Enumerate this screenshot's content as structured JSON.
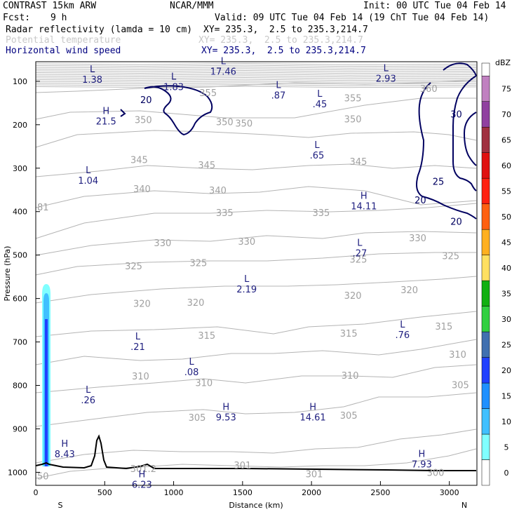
{
  "header": {
    "model": "CONTRAST 15km ARW",
    "org": "NCAR/MMM",
    "init": "Init: 00 UTC Tue 04 Feb 14",
    "fcst_label": "Fcst:",
    "fcst_value": "9 h",
    "valid": "Valid: 09 UTC Tue 04 Feb 14 (19 ChT Tue 04 Feb 14)",
    "fields": [
      {
        "name": "Radar reflectivity (lamda = 10 cm)",
        "xy": "XY= 235.3,  2.5 to 235.3,214.7",
        "color": "#000000"
      },
      {
        "name": "Potential temperature",
        "xy": "XY= 235.3,  2.5 to 235.3,214.7",
        "color": "#c8c8c8"
      },
      {
        "name": "Horizontal wind speed",
        "xy": "XY= 235.3,  2.5 to 235.3,214.7",
        "color": "#000080"
      }
    ]
  },
  "chart_data": {
    "type": "cross-section",
    "xlabel": "Distance (km)",
    "ylabel": "Pressure (hPa)",
    "xlim": [
      0,
      3200
    ],
    "ylim": [
      1030,
      55
    ],
    "x_ticks": [
      "0",
      "500",
      "1000",
      "1500",
      "2000",
      "2500",
      "3000"
    ],
    "y_ticks": [
      "100",
      "200",
      "300",
      "400",
      "500",
      "600",
      "700",
      "800",
      "900",
      "1000"
    ],
    "x_end_labels": {
      "left": "S",
      "right": "N"
    },
    "colorbar": {
      "unit": "dBZ",
      "levels": [
        "0",
        "5",
        "10",
        "15",
        "20",
        "25",
        "30",
        "35",
        "40",
        "45",
        "50",
        "55",
        "60",
        "65",
        "70",
        "75"
      ],
      "colors": [
        "#ffffff",
        "#80ffff",
        "#40c0ff",
        "#1e90ff",
        "#2040ff",
        "#4070b0",
        "#30d040",
        "#10b010",
        "#ffe060",
        "#ffb020",
        "#ff6010",
        "#ff2010",
        "#e01010",
        "#a03040",
        "#9040a0",
        "#c080c0"
      ]
    },
    "theta_labels": [
      {
        "text": "355",
        "x": 1250,
        "p": 128
      },
      {
        "text": "360",
        "x": 2850,
        "p": 118
      },
      {
        "text": "355",
        "x": 2300,
        "p": 140
      },
      {
        "text": "350",
        "x": 780,
        "p": 190
      },
      {
        "text": "350",
        "x": 1370,
        "p": 195
      },
      {
        "text": "350",
        "x": 1510,
        "p": 198
      },
      {
        "text": "350",
        "x": 2300,
        "p": 188
      },
      {
        "text": "345",
        "x": 750,
        "p": 282
      },
      {
        "text": "345",
        "x": 1240,
        "p": 294
      },
      {
        "text": "345",
        "x": 2340,
        "p": 286
      },
      {
        "text": "340",
        "x": 770,
        "p": 349
      },
      {
        "text": "340",
        "x": 1320,
        "p": 352
      },
      {
        "text": "335",
        "x": 1370,
        "p": 404
      },
      {
        "text": "335",
        "x": 2070,
        "p": 404
      },
      {
        "text": "330",
        "x": 920,
        "p": 473
      },
      {
        "text": "330",
        "x": 1530,
        "p": 470
      },
      {
        "text": "330",
        "x": 2770,
        "p": 462
      },
      {
        "text": "325",
        "x": 710,
        "p": 526
      },
      {
        "text": "325",
        "x": 1180,
        "p": 519
      },
      {
        "text": "325",
        "x": 2340,
        "p": 511
      },
      {
        "text": "325",
        "x": 3010,
        "p": 503
      },
      {
        "text": "320",
        "x": 770,
        "p": 613
      },
      {
        "text": "320",
        "x": 1160,
        "p": 610
      },
      {
        "text": "320",
        "x": 2300,
        "p": 594
      },
      {
        "text": "320",
        "x": 2710,
        "p": 581
      },
      {
        "text": "315",
        "x": 1240,
        "p": 686
      },
      {
        "text": "315",
        "x": 2270,
        "p": 681
      },
      {
        "text": "315",
        "x": 2960,
        "p": 665
      },
      {
        "text": "310",
        "x": 760,
        "p": 780
      },
      {
        "text": "310",
        "x": 1220,
        "p": 795
      },
      {
        "text": "310",
        "x": 2280,
        "p": 778
      },
      {
        "text": "310",
        "x": 3060,
        "p": 730
      },
      {
        "text": "305",
        "x": 1170,
        "p": 875
      },
      {
        "text": "305",
        "x": 2270,
        "p": 870
      },
      {
        "text": "305",
        "x": 3080,
        "p": 800
      },
      {
        "text": "301",
        "x": 1500,
        "p": 985
      },
      {
        "text": "301",
        "x": 2020,
        "p": 1005
      },
      {
        "text": "300",
        "x": 2900,
        "p": 1002
      }
    ],
    "wind_labels": [
      {
        "text": "20",
        "x": 800,
        "p": 142
      },
      {
        "text": "30",
        "x": 3050,
        "p": 175
      },
      {
        "text": "25",
        "x": 2920,
        "p": 330
      },
      {
        "text": "20",
        "x": 2790,
        "p": 373
      },
      {
        "text": "20",
        "x": 3050,
        "p": 422
      }
    ],
    "extrema": [
      {
        "type": "L",
        "value": "1.38",
        "x": 410,
        "p": 86
      },
      {
        "type": "L",
        "value": "1.83",
        "x": 1000,
        "p": 103
      },
      {
        "type": "L",
        "value": "17.46",
        "x": 1360,
        "p": 67
      },
      {
        "type": "L",
        "value": ".87",
        "x": 1760,
        "p": 122
      },
      {
        "type": "L",
        "value": ".45",
        "x": 2060,
        "p": 142
      },
      {
        "type": "L",
        "value": "2.93",
        "x": 2540,
        "p": 83
      },
      {
        "type": "H",
        "value": "21.5",
        "x": 510,
        "p": 182
      },
      {
        "type": "L",
        "value": ".65",
        "x": 2040,
        "p": 260
      },
      {
        "type": "L",
        "value": "1.04",
        "x": 380,
        "p": 318
      },
      {
        "type": "H",
        "value": "14.11",
        "x": 2380,
        "p": 377
      },
      {
        "type": "L",
        "value": ".27",
        "x": 2350,
        "p": 485
      },
      {
        "type": "L",
        "value": "2.19",
        "x": 1530,
        "p": 568
      },
      {
        "type": "L",
        "value": ".76",
        "x": 2660,
        "p": 673
      },
      {
        "type": "L",
        "value": ".21",
        "x": 740,
        "p": 701
      },
      {
        "type": "L",
        "value": ".08",
        "x": 1130,
        "p": 759
      },
      {
        "type": "L",
        "value": ".26",
        "x": 380,
        "p": 823
      },
      {
        "type": "H",
        "value": "9.53",
        "x": 1380,
        "p": 863
      },
      {
        "type": "H",
        "value": "14.61",
        "x": 2010,
        "p": 863
      },
      {
        "type": "H",
        "value": "8.43",
        "x": 210,
        "p": 948
      },
      {
        "type": "H",
        "value": "6.23",
        "x": 770,
        "p": 1018
      },
      {
        "type": "H",
        "value": "7.93",
        "x": 2800,
        "p": 971
      }
    ],
    "edge_labels": [
      {
        "text": "81",
        "side": "left",
        "p": 391
      },
      {
        "text": "50",
        "side": "left",
        "p": 1010
      },
      {
        "text": "301.2",
        "side": "bottom",
        "x": 780
      }
    ]
  }
}
